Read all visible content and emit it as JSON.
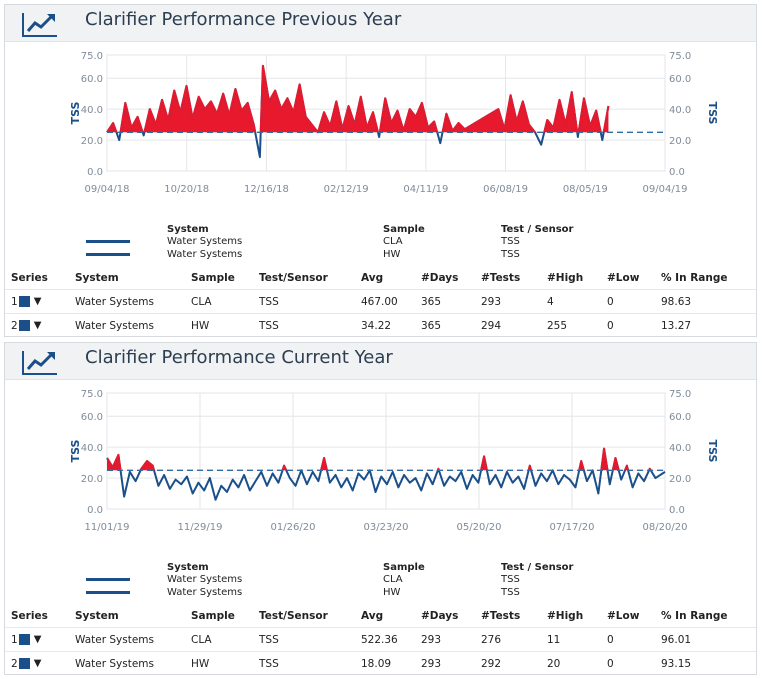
{
  "panels": [
    {
      "title": "Clarifier Performance Previous Year",
      "icon": "trend-chart-icon",
      "legend": {
        "headers": [
          "System",
          "Sample",
          "Test / Sensor"
        ],
        "rows": [
          {
            "system": "Water Systems",
            "sample": "CLA",
            "test": "TSS",
            "color": "#1a4f8a"
          },
          {
            "system": "Water Systems",
            "sample": "HW",
            "test": "TSS",
            "color": "#1a4f8a"
          }
        ]
      },
      "table": {
        "headers": [
          "Series",
          "System",
          "Sample",
          "Test/Sensor",
          "Avg",
          "#Days",
          "#Tests",
          "#High",
          "#Low",
          "% In Range"
        ],
        "rows": [
          {
            "num": "1",
            "system": "Water Systems",
            "sample": "CLA",
            "test": "TSS",
            "avg": "467.00",
            "days": "365",
            "tests": "293",
            "high": "4",
            "low": "0",
            "range": "98.63"
          },
          {
            "num": "2",
            "system": "Water Systems",
            "sample": "HW",
            "test": "TSS",
            "avg": "34.22",
            "days": "365",
            "tests": "294",
            "high": "255",
            "low": "0",
            "range": "13.27"
          }
        ]
      }
    },
    {
      "title": "Clarifier Performance Current Year",
      "icon": "trend-chart-icon",
      "legend": {
        "headers": [
          "System",
          "Sample",
          "Test / Sensor"
        ],
        "rows": [
          {
            "system": "Water Systems",
            "sample": "CLA",
            "test": "TSS",
            "color": "#1a4f8a"
          },
          {
            "system": "Water Systems",
            "sample": "HW",
            "test": "TSS",
            "color": "#1a4f8a"
          }
        ]
      },
      "table": {
        "headers": [
          "Series",
          "System",
          "Sample",
          "Test/Sensor",
          "Avg",
          "#Days",
          "#Tests",
          "#High",
          "#Low",
          "% In Range"
        ],
        "rows": [
          {
            "num": "1",
            "system": "Water Systems",
            "sample": "CLA",
            "test": "TSS",
            "avg": "522.36",
            "days": "293",
            "tests": "276",
            "high": "11",
            "low": "0",
            "range": "96.01"
          },
          {
            "num": "2",
            "system": "Water Systems",
            "sample": "HW",
            "test": "TSS",
            "avg": "18.09",
            "days": "293",
            "tests": "292",
            "high": "20",
            "low": "0",
            "range": "93.15"
          }
        ]
      }
    }
  ],
  "chart_data": [
    {
      "type": "line",
      "ylabel": "TSS",
      "ylim": [
        0,
        75
      ],
      "yticks": [
        "0.0",
        "20.0",
        "40.0",
        "60.0",
        "75.0"
      ],
      "xticks": [
        "09/04/18",
        "10/20/18",
        "12/16/18",
        "02/12/19",
        "04/11/19",
        "06/08/19",
        "08/05/19",
        "09/04/19"
      ],
      "xlim": [
        "2018-09-04",
        "2019-09-04"
      ],
      "threshold": 25,
      "colors": {
        "line": "#1a4f8a",
        "above_threshold": "#e8192c",
        "threshold": "#2e6da4"
      },
      "series": [
        {
          "values": [
            [
              "2018-09-04",
              25
            ],
            [
              "2018-09-08",
              31
            ],
            [
              "2018-09-12",
              20
            ],
            [
              "2018-09-16",
              44
            ],
            [
              "2018-09-20",
              28
            ],
            [
              "2018-09-24",
              35
            ],
            [
              "2018-09-28",
              23
            ],
            [
              "2018-10-02",
              40
            ],
            [
              "2018-10-06",
              30
            ],
            [
              "2018-10-10",
              46
            ],
            [
              "2018-10-14",
              33
            ],
            [
              "2018-10-18",
              52
            ],
            [
              "2018-10-22",
              38
            ],
            [
              "2018-10-26",
              55
            ],
            [
              "2018-10-30",
              34
            ],
            [
              "2018-11-03",
              48
            ],
            [
              "2018-11-07",
              40
            ],
            [
              "2018-11-11",
              45
            ],
            [
              "2018-11-15",
              37
            ],
            [
              "2018-11-19",
              50
            ],
            [
              "2018-11-23",
              36
            ],
            [
              "2018-11-27",
              53
            ],
            [
              "2018-12-01",
              39
            ],
            [
              "2018-12-05",
              44
            ],
            [
              "2018-12-09",
              30
            ],
            [
              "2018-12-13",
              9
            ],
            [
              "2018-12-15",
              68
            ],
            [
              "2018-12-19",
              45
            ],
            [
              "2018-12-23",
              52
            ],
            [
              "2018-12-27",
              40
            ],
            [
              "2018-12-31",
              47
            ],
            [
              "2019-01-04",
              38
            ],
            [
              "2019-01-08",
              56
            ],
            [
              "2019-01-12",
              35
            ],
            [
              "2019-01-16",
              30
            ],
            [
              "2019-01-20",
              25
            ],
            [
              "2019-01-24",
              38
            ],
            [
              "2019-01-28",
              29
            ],
            [
              "2019-02-01",
              45
            ],
            [
              "2019-02-05",
              27
            ],
            [
              "2019-02-09",
              42
            ],
            [
              "2019-02-13",
              30
            ],
            [
              "2019-02-17",
              48
            ],
            [
              "2019-02-21",
              28
            ],
            [
              "2019-02-25",
              38
            ],
            [
              "2019-03-01",
              22
            ],
            [
              "2019-03-05",
              47
            ],
            [
              "2019-03-09",
              31
            ],
            [
              "2019-03-13",
              39
            ],
            [
              "2019-03-17",
              26
            ],
            [
              "2019-03-21",
              40
            ],
            [
              "2019-03-25",
              35
            ],
            [
              "2019-03-29",
              44
            ],
            [
              "2019-04-02",
              28
            ],
            [
              "2019-04-06",
              32
            ],
            [
              "2019-04-10",
              18
            ],
            [
              "2019-04-14",
              37
            ],
            [
              "2019-04-18",
              26
            ],
            [
              "2019-04-22",
              31
            ],
            [
              "2019-04-26",
              27
            ],
            [
              "2019-05-18",
              40
            ],
            [
              "2019-05-22",
              27
            ],
            [
              "2019-05-26",
              49
            ],
            [
              "2019-05-30",
              32
            ],
            [
              "2019-06-03",
              45
            ],
            [
              "2019-06-07",
              30
            ],
            [
              "2019-06-11",
              25
            ],
            [
              "2019-06-15",
              17
            ],
            [
              "2019-06-19",
              33
            ],
            [
              "2019-06-23",
              28
            ],
            [
              "2019-06-27",
              46
            ],
            [
              "2019-07-01",
              30
            ],
            [
              "2019-07-05",
              51
            ],
            [
              "2019-07-09",
              22
            ],
            [
              "2019-07-13",
              47
            ],
            [
              "2019-07-17",
              29
            ],
            [
              "2019-07-21",
              39
            ],
            [
              "2019-07-25",
              20
            ],
            [
              "2019-07-29",
              42
            ]
          ]
        }
      ]
    },
    {
      "type": "line",
      "ylabel": "TSS",
      "ylim": [
        0,
        75
      ],
      "yticks": [
        "0.0",
        "20.0",
        "40.0",
        "60.0",
        "75.0"
      ],
      "xticks": [
        "11/01/19",
        "11/29/19",
        "01/26/20",
        "03/23/20",
        "05/20/20",
        "07/17/20",
        "08/20/20"
      ],
      "xlim": [
        "2019-11-01",
        "2020-08-20"
      ],
      "threshold": 25,
      "colors": {
        "line": "#1a4f8a",
        "above_threshold": "#e8192c",
        "threshold": "#2e6da4"
      },
      "series": [
        {
          "values": [
            [
              "2019-11-01",
              33
            ],
            [
              "2019-11-04",
              27
            ],
            [
              "2019-11-07",
              35
            ],
            [
              "2019-11-10",
              8
            ],
            [
              "2019-11-13",
              24
            ],
            [
              "2019-11-16",
              18
            ],
            [
              "2019-11-19",
              26
            ],
            [
              "2019-11-22",
              31
            ],
            [
              "2019-11-25",
              28
            ],
            [
              "2019-11-28",
              15
            ],
            [
              "2019-12-01",
              22
            ],
            [
              "2019-12-04",
              13
            ],
            [
              "2019-12-07",
              19
            ],
            [
              "2019-12-10",
              16
            ],
            [
              "2019-12-13",
              21
            ],
            [
              "2019-12-16",
              10
            ],
            [
              "2019-12-19",
              17
            ],
            [
              "2019-12-22",
              12
            ],
            [
              "2019-12-25",
              20
            ],
            [
              "2019-12-28",
              6
            ],
            [
              "2019-12-31",
              15
            ],
            [
              "2020-01-03",
              11
            ],
            [
              "2020-01-06",
              19
            ],
            [
              "2020-01-09",
              14
            ],
            [
              "2020-01-12",
              22
            ],
            [
              "2020-01-15",
              12
            ],
            [
              "2020-01-18",
              18
            ],
            [
              "2020-01-21",
              24
            ],
            [
              "2020-01-24",
              15
            ],
            [
              "2020-01-27",
              23
            ],
            [
              "2020-01-30",
              17
            ],
            [
              "2020-02-02",
              28
            ],
            [
              "2020-02-05",
              20
            ],
            [
              "2020-02-08",
              15
            ],
            [
              "2020-02-11",
              25
            ],
            [
              "2020-02-14",
              16
            ],
            [
              "2020-02-17",
              24
            ],
            [
              "2020-02-20",
              18
            ],
            [
              "2020-02-23",
              33
            ],
            [
              "2020-02-26",
              17
            ],
            [
              "2020-02-29",
              22
            ],
            [
              "2020-03-03",
              14
            ],
            [
              "2020-03-06",
              20
            ],
            [
              "2020-03-09",
              12
            ],
            [
              "2020-03-12",
              23
            ],
            [
              "2020-03-15",
              19
            ],
            [
              "2020-03-18",
              25
            ],
            [
              "2020-03-21",
              11
            ],
            [
              "2020-03-24",
              21
            ],
            [
              "2020-03-27",
              16
            ],
            [
              "2020-03-30",
              24
            ],
            [
              "2020-04-02",
              14
            ],
            [
              "2020-04-05",
              22
            ],
            [
              "2020-04-08",
              17
            ],
            [
              "2020-04-11",
              20
            ],
            [
              "2020-04-14",
              12
            ],
            [
              "2020-04-17",
              23
            ],
            [
              "2020-04-20",
              16
            ],
            [
              "2020-04-23",
              26
            ],
            [
              "2020-04-26",
              15
            ],
            [
              "2020-04-29",
              21
            ],
            [
              "2020-05-02",
              18
            ],
            [
              "2020-05-05",
              24
            ],
            [
              "2020-05-08",
              13
            ],
            [
              "2020-05-11",
              22
            ],
            [
              "2020-05-14",
              17
            ],
            [
              "2020-05-17",
              34
            ],
            [
              "2020-05-20",
              16
            ],
            [
              "2020-05-23",
              22
            ],
            [
              "2020-05-26",
              14
            ],
            [
              "2020-05-29",
              24
            ],
            [
              "2020-06-01",
              17
            ],
            [
              "2020-06-04",
              21
            ],
            [
              "2020-06-07",
              13
            ],
            [
              "2020-06-10",
              28
            ],
            [
              "2020-06-13",
              15
            ],
            [
              "2020-06-16",
              23
            ],
            [
              "2020-06-19",
              18
            ],
            [
              "2020-06-22",
              25
            ],
            [
              "2020-06-25",
              16
            ],
            [
              "2020-06-28",
              22
            ],
            [
              "2020-07-01",
              19
            ],
            [
              "2020-07-04",
              14
            ],
            [
              "2020-07-07",
              31
            ],
            [
              "2020-07-10",
              18
            ],
            [
              "2020-07-13",
              25
            ],
            [
              "2020-07-16",
              10
            ],
            [
              "2020-07-19",
              39
            ],
            [
              "2020-07-22",
              16
            ],
            [
              "2020-07-25",
              33
            ],
            [
              "2020-07-28",
              19
            ],
            [
              "2020-07-31",
              28
            ],
            [
              "2020-08-03",
              14
            ],
            [
              "2020-08-06",
              23
            ],
            [
              "2020-08-09",
              18
            ],
            [
              "2020-08-12",
              26
            ],
            [
              "2020-08-15",
              20
            ],
            [
              "2020-08-20",
              24
            ]
          ]
        }
      ]
    }
  ]
}
